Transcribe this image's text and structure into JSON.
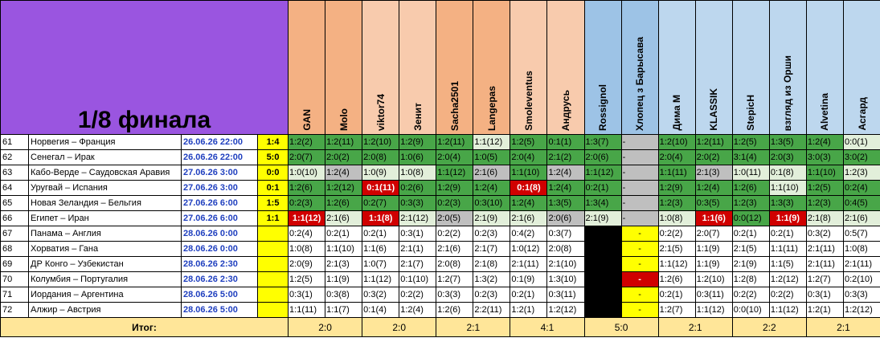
{
  "title": "1/8 финала",
  "palette": {
    "g": "#48a648",
    "l": "#e2efda",
    "x": "#bfbfbf",
    "r": "#d00000",
    "w": "#ffffff",
    "k": "#000000",
    "y": "#ffff00"
  },
  "players": [
    {
      "name": "GAN",
      "color": "#f4b183"
    },
    {
      "name": "Molo",
      "color": "#f4b183"
    },
    {
      "name": "viktor74",
      "color": "#f8cbad"
    },
    {
      "name": "Зенит",
      "color": "#f8cbad"
    },
    {
      "name": "Sacha2501",
      "color": "#f4b183"
    },
    {
      "name": "Langepas",
      "color": "#f4b183"
    },
    {
      "name": "Smoleventus",
      "color": "#f8cbad"
    },
    {
      "name": "Андрусь",
      "color": "#f8cbad"
    },
    {
      "name": "Rossignol",
      "color": "#9dc3e6"
    },
    {
      "name": "Хлопец з Барысава",
      "color": "#9dc3e6"
    },
    {
      "name": "Дима М",
      "color": "#bdd7ee"
    },
    {
      "name": "KLASSIK",
      "color": "#bdd7ee"
    },
    {
      "name": "StepicH",
      "color": "#bdd7ee"
    },
    {
      "name": "взгляд из Орши",
      "color": "#bdd7ee"
    },
    {
      "name": "Alvetina",
      "color": "#bdd7ee"
    },
    {
      "name": "Асгард",
      "color": "#bdd7ee"
    }
  ],
  "rows": [
    {
      "num": "61",
      "match": "Норвегия – Франция",
      "date": "26.06.26 22:00",
      "result": "1:4",
      "preds": [
        "1:2(2)",
        "1:2(11)",
        "1:2(10)",
        "1:2(9)",
        "1:2(11)",
        "1:1(12)",
        "1:2(5)",
        "0:1(1)",
        "1:3(7)",
        "-",
        "1:2(10)",
        "1:2(11)",
        "1:2(5)",
        "1:3(5)",
        "1:2(4)",
        "0:0(1)"
      ],
      "colors": [
        "g",
        "g",
        "g",
        "g",
        "g",
        "l",
        "g",
        "g",
        "g",
        "x",
        "g",
        "g",
        "g",
        "g",
        "g",
        "l"
      ]
    },
    {
      "num": "62",
      "match": "Сенегал – Ирак",
      "date": "26.06.26 22:00",
      "result": "5:0",
      "preds": [
        "2:0(7)",
        "2:0(2)",
        "2:0(8)",
        "1:0(6)",
        "2:0(4)",
        "1:0(5)",
        "2:0(4)",
        "2:1(2)",
        "2:0(6)",
        "-",
        "2:0(4)",
        "2:0(2)",
        "3:1(4)",
        "2:0(3)",
        "3:0(3)",
        "3:0(2)"
      ],
      "colors": [
        "g",
        "g",
        "g",
        "g",
        "g",
        "g",
        "g",
        "g",
        "g",
        "x",
        "g",
        "g",
        "g",
        "g",
        "g",
        "g"
      ]
    },
    {
      "num": "63",
      "match": "Кабо-Верде – Саудовская Аравия",
      "date": "27.06.26 3:00",
      "result": "0:0",
      "preds": [
        "1:0(10)",
        "1:2(4)",
        "1:0(9)",
        "1:0(8)",
        "1:1(12)",
        "2:1(6)",
        "1:1(10)",
        "1:2(4)",
        "1:1(12)",
        "-",
        "1:1(11)",
        "2:1(3)",
        "1:0(11)",
        "0:1(8)",
        "1:1(10)",
        "1:2(3)"
      ],
      "colors": [
        "l",
        "x",
        "l",
        "l",
        "g",
        "x",
        "g",
        "x",
        "g",
        "x",
        "g",
        "x",
        "l",
        "l",
        "g",
        "l"
      ]
    },
    {
      "num": "64",
      "match": "Уругвай – Испания",
      "date": "27.06.26 3:00",
      "result": "0:1",
      "preds": [
        "1:2(6)",
        "1:2(12)",
        "0:1(11)",
        "0:2(6)",
        "1:2(9)",
        "1:2(4)",
        "0:1(8)",
        "1:2(4)",
        "0:2(1)",
        "-",
        "1:2(9)",
        "1:2(4)",
        "1:2(6)",
        "1:1(10)",
        "1:2(5)",
        "0:2(4)"
      ],
      "colors": [
        "g",
        "g",
        "r",
        "g",
        "g",
        "g",
        "r",
        "g",
        "g",
        "x",
        "g",
        "g",
        "g",
        "l",
        "g",
        "g"
      ]
    },
    {
      "num": "65",
      "match": "Новая Зеландия – Бельгия",
      "date": "27.06.26 6:00",
      "result": "1:5",
      "preds": [
        "0:2(3)",
        "1:2(6)",
        "0:2(7)",
        "0:3(3)",
        "0:2(3)",
        "0:3(10)",
        "1:2(4)",
        "1:3(5)",
        "1:3(4)",
        "-",
        "1:2(3)",
        "0:3(5)",
        "1:2(3)",
        "1:3(3)",
        "1:2(3)",
        "0:4(5)"
      ],
      "colors": [
        "g",
        "g",
        "g",
        "g",
        "g",
        "g",
        "g",
        "g",
        "g",
        "x",
        "g",
        "g",
        "g",
        "g",
        "g",
        "g"
      ]
    },
    {
      "num": "66",
      "match": "Египет – Иран",
      "date": "27.06.26 6:00",
      "result": "1:1",
      "preds": [
        "1:1(12)",
        "2:1(6)",
        "1:1(8)",
        "2:1(12)",
        "2:0(5)",
        "2:1(9)",
        "2:1(6)",
        "2:0(6)",
        "2:1(9)",
        "-",
        "1:0(8)",
        "1:1(6)",
        "0:0(12)",
        "1:1(9)",
        "2:1(8)",
        "2:1(6)"
      ],
      "colors": [
        "r",
        "l",
        "r",
        "l",
        "x",
        "l",
        "l",
        "x",
        "l",
        "x",
        "l",
        "r",
        "g",
        "r",
        "l",
        "l"
      ]
    },
    {
      "num": "67",
      "match": "Панама – Англия",
      "date": "28.06.26 0:00",
      "result": null,
      "preds": [
        "0:2(4)",
        "0:2(1)",
        "0:2(1)",
        "0:3(1)",
        "0:2(2)",
        "0:2(3)",
        "0:4(2)",
        "0:3(7)",
        null,
        "-",
        "0:2(2)",
        "2:0(7)",
        "0:2(1)",
        "0:2(1)",
        "0:3(2)",
        "0:5(7)"
      ],
      "colors": [
        "w",
        "w",
        "w",
        "w",
        "w",
        "w",
        "w",
        "w",
        "k",
        "y",
        "w",
        "w",
        "w",
        "w",
        "w",
        "w"
      ]
    },
    {
      "num": "68",
      "match": "Хорватия – Гана",
      "date": "28.06.26 0:00",
      "result": null,
      "preds": [
        "1:0(8)",
        "1:1(10)",
        "1:1(6)",
        "2:1(1)",
        "2:1(6)",
        "2:1(7)",
        "1:0(12)",
        "2:0(8)",
        null,
        "-",
        "2:1(5)",
        "1:1(9)",
        "2:1(5)",
        "1:1(11)",
        "2:1(11)",
        "1:0(8)"
      ],
      "colors": [
        "w",
        "w",
        "w",
        "w",
        "w",
        "w",
        "w",
        "w",
        "k",
        "y",
        "w",
        "w",
        "w",
        "w",
        "w",
        "w"
      ]
    },
    {
      "num": "69",
      "match": "ДР Конго – Узбекистан",
      "date": "28.06.26 2:30",
      "result": null,
      "preds": [
        "2:0(9)",
        "2:1(3)",
        "1:0(7)",
        "2:1(7)",
        "2:0(8)",
        "2:1(8)",
        "2:1(11)",
        "2:1(10)",
        null,
        "-",
        "1:1(12)",
        "1:1(9)",
        "2:1(9)",
        "1:1(5)",
        "2:1(11)",
        "2:1(11)"
      ],
      "colors": [
        "w",
        "w",
        "w",
        "w",
        "w",
        "w",
        "w",
        "w",
        "k",
        "y",
        "w",
        "w",
        "w",
        "w",
        "w",
        "w"
      ]
    },
    {
      "num": "70",
      "match": "Колумбия – Португалия",
      "date": "28.06.26 2:30",
      "result": null,
      "preds": [
        "1:2(5)",
        "1:1(9)",
        "1:1(12)",
        "0:1(10)",
        "1:2(7)",
        "1:3(2)",
        "0:1(9)",
        "1:3(10)",
        null,
        "-",
        "1:2(6)",
        "1:2(10)",
        "1:2(8)",
        "1:2(12)",
        "1:2(7)",
        "0:2(10)"
      ],
      "colors": [
        "w",
        "w",
        "w",
        "w",
        "w",
        "w",
        "w",
        "w",
        "k",
        "r",
        "w",
        "w",
        "w",
        "w",
        "w",
        "w"
      ]
    },
    {
      "num": "71",
      "match": "Иордания – Аргентина",
      "date": "28.06.26 5:00",
      "result": null,
      "preds": [
        "0:3(1)",
        "0:3(8)",
        "0:3(2)",
        "0:2(2)",
        "0:3(3)",
        "0:2(3)",
        "0:2(1)",
        "0:3(11)",
        null,
        "-",
        "0:2(1)",
        "0:3(11)",
        "0:2(2)",
        "0:2(2)",
        "0:3(1)",
        "0:3(3)"
      ],
      "colors": [
        "w",
        "w",
        "w",
        "w",
        "w",
        "w",
        "w",
        "w",
        "k",
        "y",
        "w",
        "w",
        "w",
        "w",
        "w",
        "w"
      ]
    },
    {
      "num": "72",
      "match": "Алжир – Австрия",
      "date": "28.06.26 5:00",
      "result": null,
      "preds": [
        "1:1(11)",
        "1:1(7)",
        "0:1(4)",
        "1:2(4)",
        "1:2(6)",
        "2:2(11)",
        "1:2(1)",
        "1:2(12)",
        null,
        "-",
        "1:2(7)",
        "1:1(12)",
        "0:0(10)",
        "1:1(12)",
        "1:2(1)",
        "1:2(12)"
      ],
      "colors": [
        "w",
        "w",
        "w",
        "w",
        "w",
        "w",
        "w",
        "w",
        "k",
        "y",
        "w",
        "w",
        "w",
        "w",
        "w",
        "w"
      ]
    }
  ],
  "footer": {
    "label": "Итог:",
    "totals": [
      "2:0",
      "2:0",
      "2:1",
      "4:1",
      "5:0",
      "2:1",
      "2:2",
      "2:1"
    ]
  }
}
